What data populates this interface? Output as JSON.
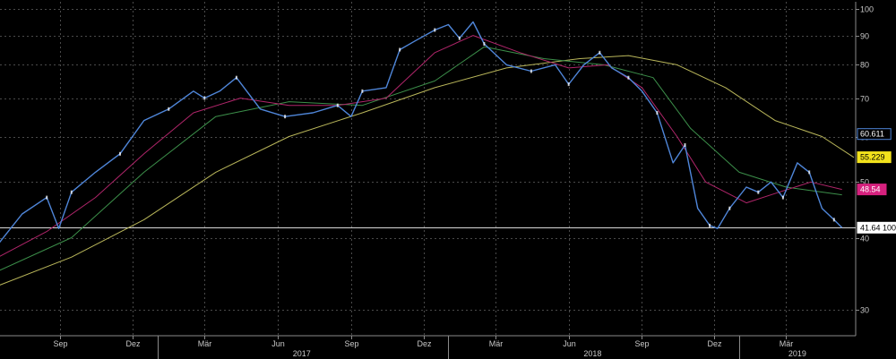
{
  "chart_data": {
    "type": "line",
    "title": "",
    "yscale": "log",
    "ylim": [
      27,
      103
    ],
    "y_ticks": [
      30,
      40,
      50,
      60,
      70,
      80,
      90,
      100
    ],
    "x_range": [
      "2016-06-15",
      "2019-05-25"
    ],
    "x_month_ticks": [
      {
        "date": "2016-09-01",
        "label": "Sep"
      },
      {
        "date": "2016-12-01",
        "label": "Dez"
      },
      {
        "date": "2017-03-01",
        "label": "Mär"
      },
      {
        "date": "2017-06-01",
        "label": "Jun"
      },
      {
        "date": "2017-09-01",
        "label": "Sep"
      },
      {
        "date": "2017-12-01",
        "label": "Dez"
      },
      {
        "date": "2018-03-01",
        "label": "Mär"
      },
      {
        "date": "2018-06-01",
        "label": "Jun"
      },
      {
        "date": "2018-09-01",
        "label": "Sep"
      },
      {
        "date": "2018-12-01",
        "label": "Dez"
      },
      {
        "date": "2019-03-01",
        "label": "Mär"
      }
    ],
    "x_year_labels": [
      {
        "label": "2017",
        "center": "2017-07-01"
      },
      {
        "label": "2018",
        "center": "2018-07-01"
      },
      {
        "label": "2019",
        "center": "2019-03-15"
      }
    ],
    "x_year_boundaries": [
      "2017-01-01",
      "2018-01-01",
      "2019-01-01"
    ],
    "grid": true,
    "reference_line": {
      "value": 41.64,
      "label": "41.64 100"
    },
    "series": [
      {
        "color": "#4f86d9",
        "points": [
          [
            "2016-06-15",
            39
          ],
          [
            "2016-07-15",
            44
          ],
          [
            "2016-08-15",
            47
          ],
          [
            "2016-08-30",
            41.5
          ],
          [
            "2016-09-15",
            48
          ],
          [
            "2016-10-15",
            52
          ],
          [
            "2016-11-15",
            56
          ],
          [
            "2016-12-15",
            64
          ],
          [
            "2017-01-15",
            67
          ],
          [
            "2017-02-15",
            72
          ],
          [
            "2017-03-01",
            70
          ],
          [
            "2017-03-20",
            72
          ],
          [
            "2017-04-10",
            76
          ],
          [
            "2017-05-10",
            67
          ],
          [
            "2017-06-10",
            65
          ],
          [
            "2017-07-15",
            66
          ],
          [
            "2017-08-15",
            68
          ],
          [
            "2017-09-01",
            65
          ],
          [
            "2017-09-15",
            72
          ],
          [
            "2017-10-15",
            73
          ],
          [
            "2017-11-01",
            85
          ],
          [
            "2017-11-20",
            88
          ],
          [
            "2017-12-15",
            92
          ],
          [
            "2018-01-01",
            94
          ],
          [
            "2018-01-15",
            89
          ],
          [
            "2018-02-01",
            95
          ],
          [
            "2018-02-15",
            87
          ],
          [
            "2018-03-15",
            80
          ],
          [
            "2018-04-15",
            78
          ],
          [
            "2018-05-15",
            80
          ],
          [
            "2018-06-01",
            74
          ],
          [
            "2018-06-20",
            80
          ],
          [
            "2018-07-10",
            84
          ],
          [
            "2018-07-25",
            79
          ],
          [
            "2018-08-15",
            76
          ],
          [
            "2018-09-01",
            72
          ],
          [
            "2018-09-20",
            66
          ],
          [
            "2018-10-10",
            54
          ],
          [
            "2018-10-25",
            58
          ],
          [
            "2018-11-10",
            45
          ],
          [
            "2018-11-25",
            42
          ],
          [
            "2018-12-05",
            41.5
          ],
          [
            "2018-12-20",
            45
          ],
          [
            "2019-01-10",
            49
          ],
          [
            "2019-01-25",
            48
          ],
          [
            "2019-02-10",
            50
          ],
          [
            "2019-02-25",
            47
          ],
          [
            "2019-03-15",
            54
          ],
          [
            "2019-03-30",
            52
          ],
          [
            "2019-04-15",
            45
          ],
          [
            "2019-04-30",
            43
          ],
          [
            "2019-05-10",
            41.64
          ]
        ]
      },
      {
        "color": "#b0256a",
        "points": [
          [
            "2016-06-15",
            37
          ],
          [
            "2016-08-15",
            41
          ],
          [
            "2016-10-15",
            47
          ],
          [
            "2016-12-15",
            56
          ],
          [
            "2017-02-15",
            66
          ],
          [
            "2017-04-15",
            70
          ],
          [
            "2017-06-15",
            68
          ],
          [
            "2017-08-15",
            68
          ],
          [
            "2017-10-15",
            70
          ],
          [
            "2017-12-15",
            84
          ],
          [
            "2018-02-01",
            90
          ],
          [
            "2018-04-01",
            84
          ],
          [
            "2018-06-01",
            79
          ],
          [
            "2018-07-20",
            80
          ],
          [
            "2018-09-01",
            73
          ],
          [
            "2018-10-15",
            60
          ],
          [
            "2018-11-20",
            50
          ],
          [
            "2019-01-10",
            46
          ],
          [
            "2019-02-20",
            48
          ],
          [
            "2019-04-01",
            50
          ],
          [
            "2019-05-10",
            48.54
          ]
        ]
      },
      {
        "color": "#3c8f4a",
        "points": [
          [
            "2016-06-15",
            35
          ],
          [
            "2016-09-15",
            40
          ],
          [
            "2016-12-15",
            52
          ],
          [
            "2017-03-15",
            65
          ],
          [
            "2017-06-15",
            69
          ],
          [
            "2017-09-15",
            68
          ],
          [
            "2017-12-15",
            75
          ],
          [
            "2018-02-15",
            86
          ],
          [
            "2018-05-01",
            82
          ],
          [
            "2018-07-15",
            80
          ],
          [
            "2018-09-15",
            76
          ],
          [
            "2018-11-01",
            62
          ],
          [
            "2019-01-01",
            52
          ],
          [
            "2019-03-01",
            49
          ],
          [
            "2019-05-10",
            47.5
          ]
        ]
      },
      {
        "color": "#b9b65a",
        "points": [
          [
            "2016-06-15",
            33
          ],
          [
            "2016-09-15",
            37
          ],
          [
            "2016-12-15",
            43
          ],
          [
            "2017-03-15",
            52
          ],
          [
            "2017-06-15",
            60
          ],
          [
            "2017-09-15",
            66
          ],
          [
            "2017-12-15",
            73
          ],
          [
            "2018-03-15",
            79
          ],
          [
            "2018-06-15",
            82
          ],
          [
            "2018-08-15",
            83
          ],
          [
            "2018-10-15",
            80
          ],
          [
            "2018-12-15",
            73
          ],
          [
            "2019-02-15",
            64
          ],
          [
            "2019-04-15",
            60
          ],
          [
            "2019-05-25",
            55.2
          ]
        ]
      }
    ],
    "value_tags": [
      {
        "value": 60.611,
        "label": "60.611",
        "bg": "#000000",
        "fg": "#ffffff",
        "border": "#4f86d9"
      },
      {
        "value": 55.229,
        "label": "55.229",
        "bg": "#f2e21c",
        "fg": "#000000",
        "border": "#f2e21c"
      },
      {
        "value": 48.54,
        "label": "48.54",
        "bg": "#d6217e",
        "fg": "#ffffff",
        "border": "#d6217e"
      },
      {
        "value": 41.64,
        "label": "41.64 100",
        "bg": "#ffffff",
        "fg": "#000000",
        "border": "#ffffff"
      }
    ]
  }
}
